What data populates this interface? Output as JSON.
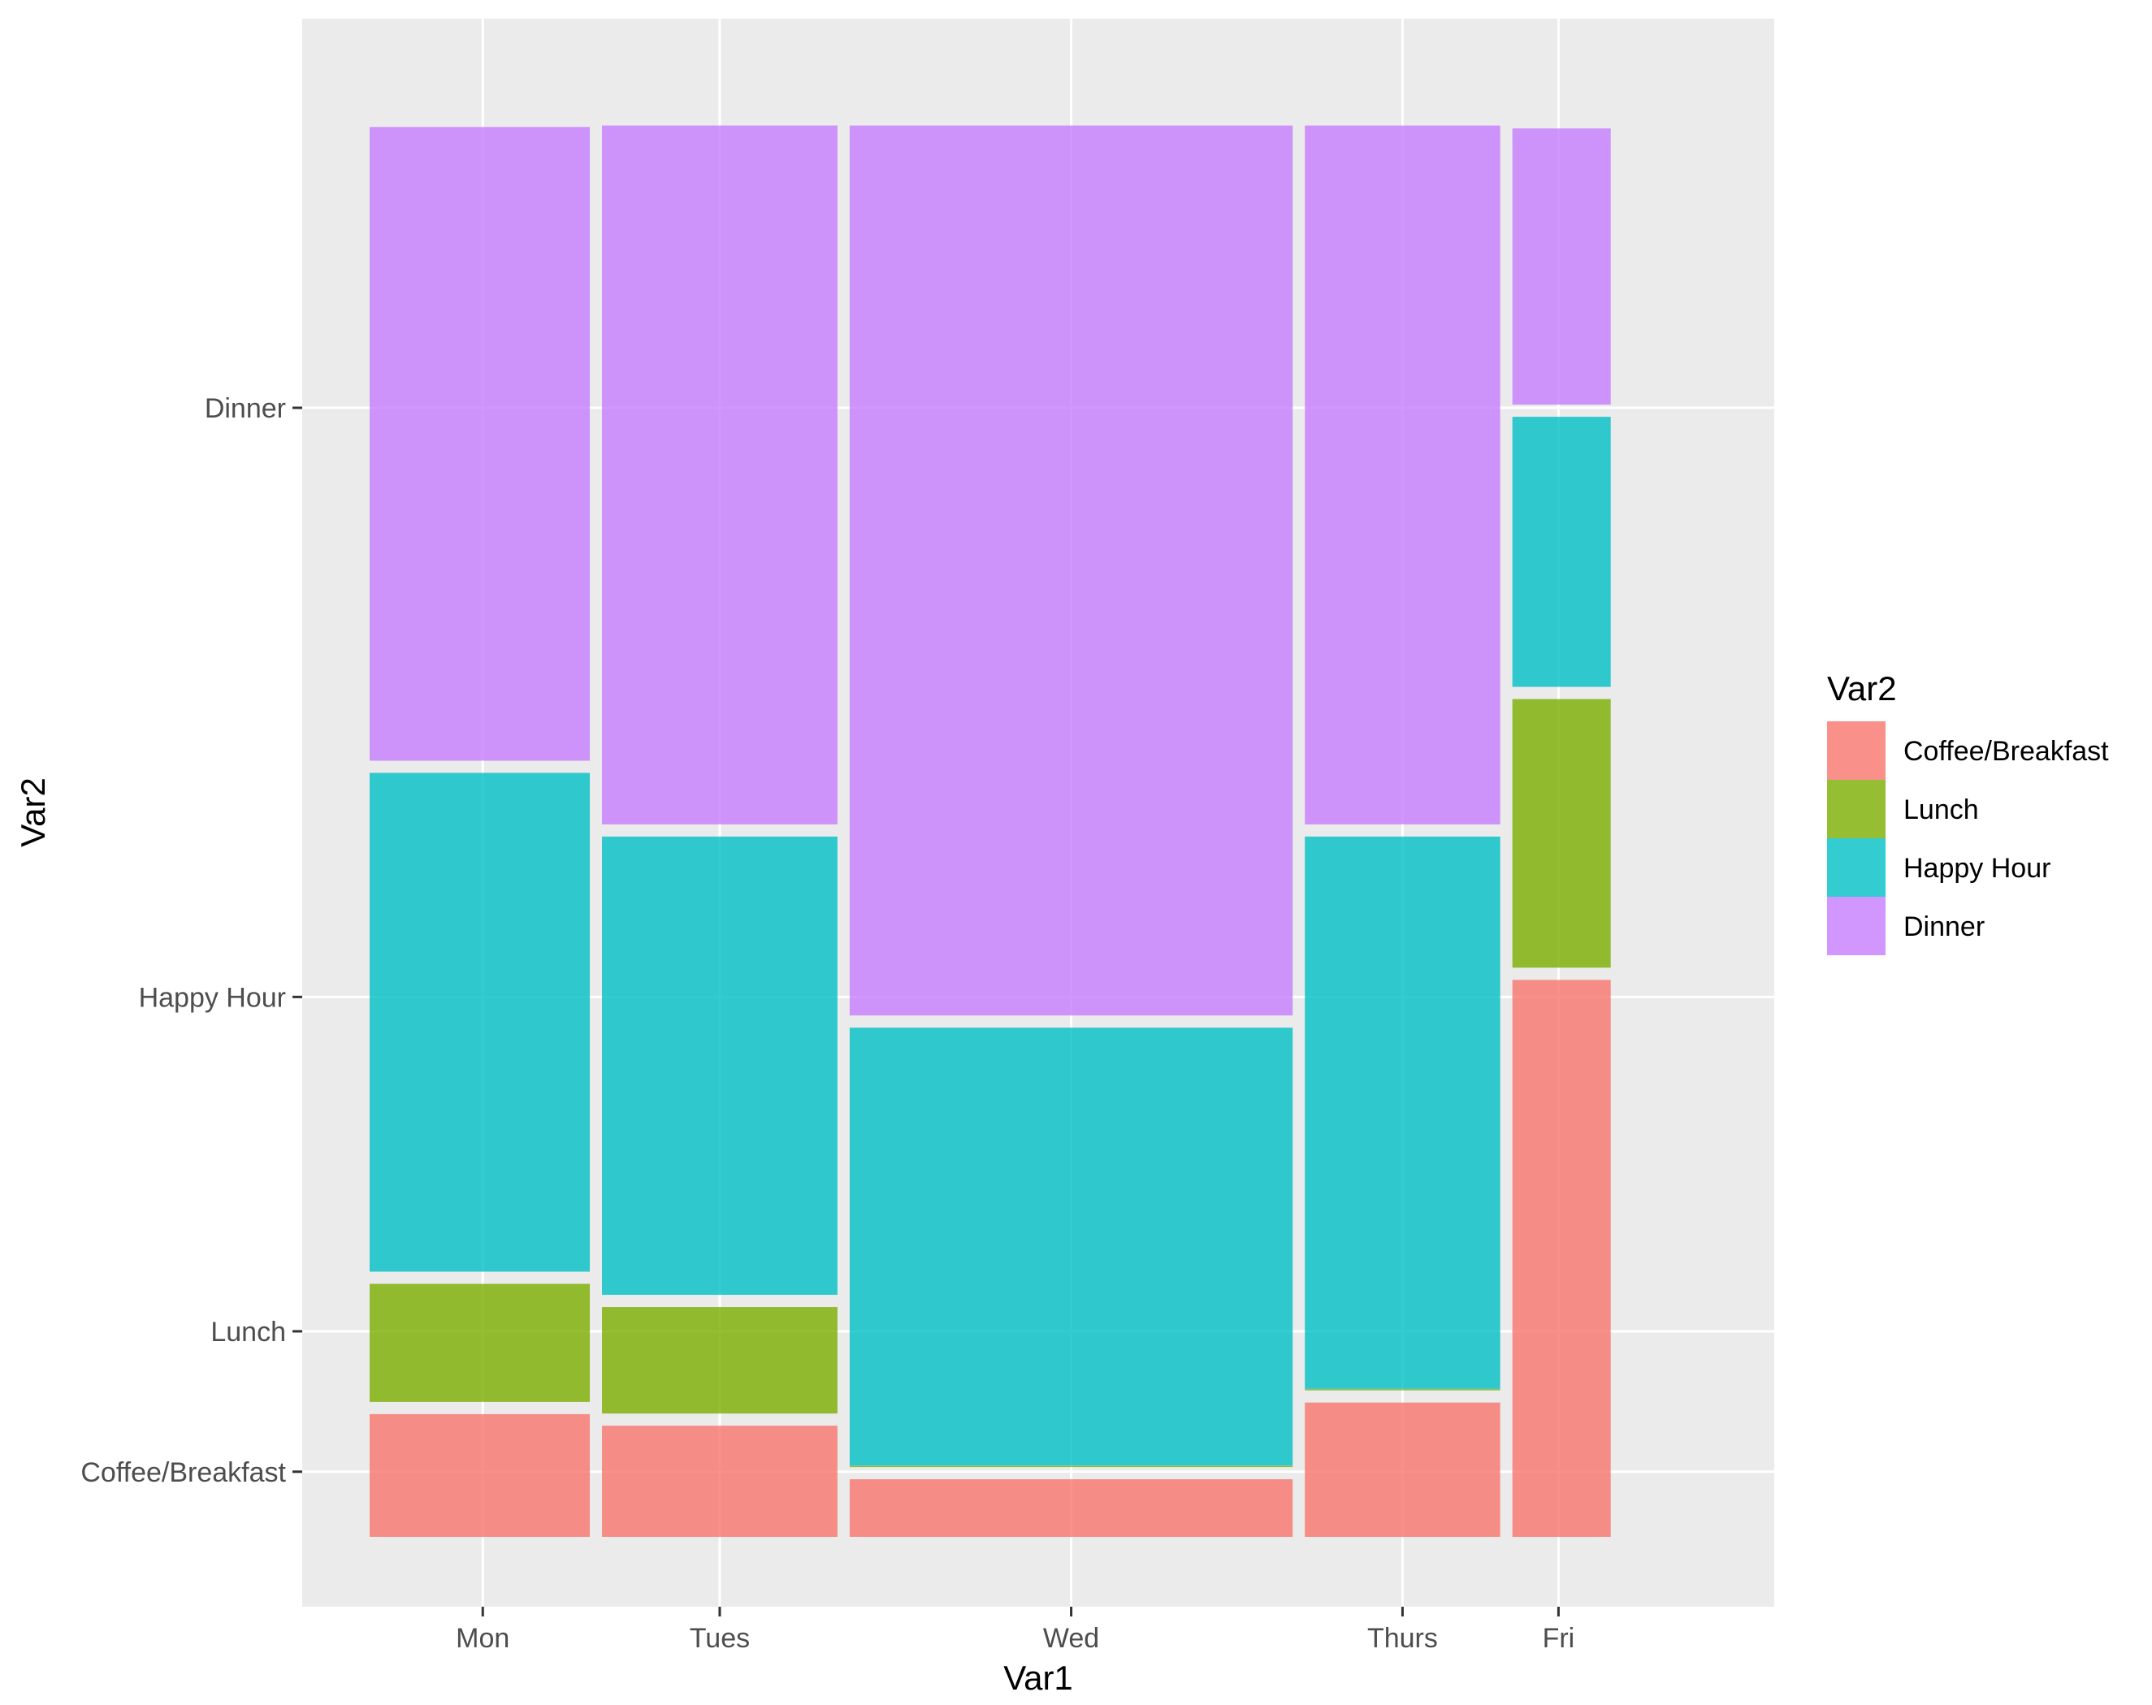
{
  "chart_data": {
    "type": "mosaic",
    "xlabel": "Var1",
    "ylabel": "Var2",
    "legend_title": "Var2",
    "legend_position": "right",
    "grid": true,
    "colors": {
      "panel": "#EBEBEB",
      "grid": "#FFFFFF",
      "Coffee/Breakfast": "#F8766D",
      "Lunch": "#7CAE00",
      "Happy Hour": "#00BFC4",
      "Dinner": "#C77CFF"
    },
    "categories": [
      "Mon",
      "Tues",
      "Wed",
      "Thurs",
      "Fri"
    ],
    "series_order": [
      "Coffee/Breakfast",
      "Lunch",
      "Happy Hour",
      "Dinner"
    ],
    "column_width_fraction": [
      0.169,
      0.185,
      0.34,
      0.155,
      0.078
    ],
    "series": [
      {
        "name": "Coffee/Breakfast",
        "values": [
          0.089,
          0.081,
          0.044,
          0.097,
          0.389
        ]
      },
      {
        "name": "Lunch",
        "values": [
          0.09,
          0.082,
          0.001,
          0.001,
          0.194
        ]
      },
      {
        "name": "Happy Hour",
        "values": [
          0.353,
          0.325,
          0.311,
          0.39,
          0.195
        ]
      },
      {
        "name": "Dinner",
        "values": [
          0.442,
          0.487,
          0.619,
          0.487,
          0.195
        ]
      }
    ],
    "y_ticks": [
      "Coffee/Breakfast",
      "Lunch",
      "Happy Hour",
      "Dinner"
    ],
    "y_tick_positions": [
      0.045,
      0.142,
      0.373,
      0.78
    ]
  }
}
